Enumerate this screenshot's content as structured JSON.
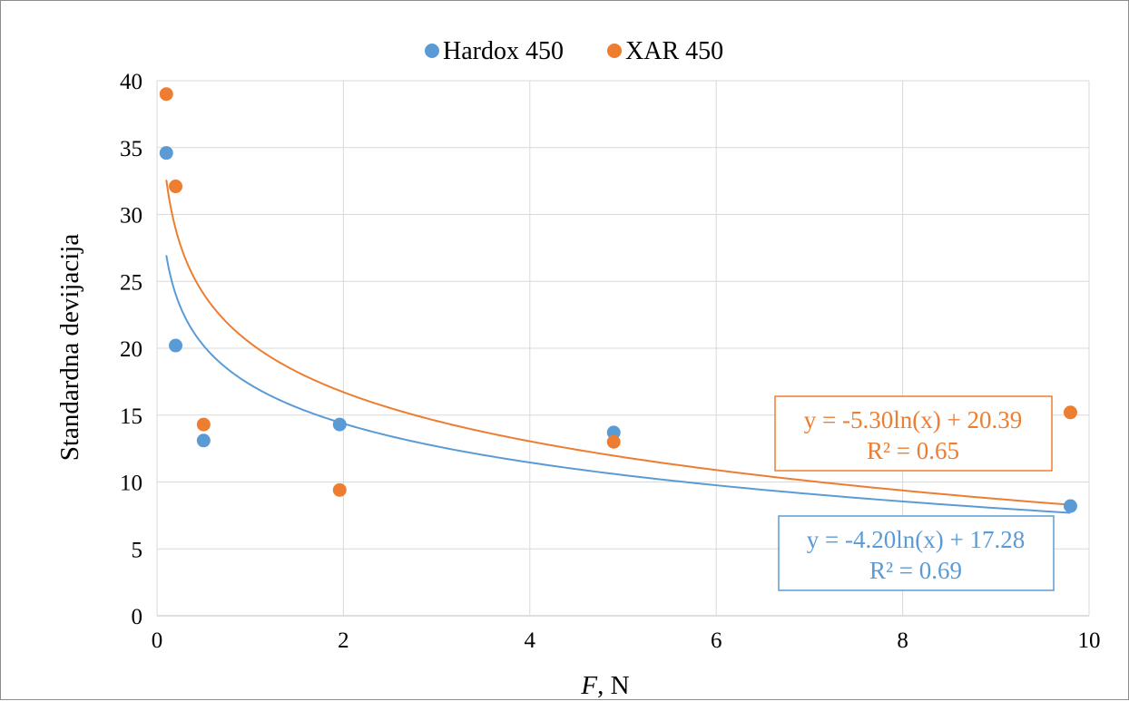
{
  "chart_data": {
    "type": "scatter",
    "xlabel_italic": "F",
    "xlabel_rest": ", N",
    "ylabel": "Standardna devijacija",
    "xlim": [
      0,
      10
    ],
    "ylim": [
      0,
      40
    ],
    "xticks": [
      0,
      2,
      4,
      6,
      8,
      10
    ],
    "yticks": [
      0,
      5,
      10,
      15,
      20,
      25,
      30,
      35,
      40
    ],
    "xtick_labels": [
      "0",
      "2",
      "4",
      "6",
      "8",
      "10"
    ],
    "ytick_labels": [
      "0",
      "5",
      "10",
      "15",
      "20",
      "25",
      "30",
      "35",
      "40"
    ],
    "grid": true,
    "legend_position": "top",
    "series": [
      {
        "name": "Hardox 450",
        "color": "#5b9bd5",
        "points": [
          [
            0.1,
            34.6
          ],
          [
            0.2,
            20.2
          ],
          [
            0.5,
            13.1
          ],
          [
            1.96,
            14.3
          ],
          [
            4.9,
            13.7
          ],
          [
            9.8,
            8.2
          ]
        ],
        "trendline": {
          "type": "log",
          "a": -4.2,
          "b": 17.28,
          "x_from": 0.1,
          "x_to": 9.8
        },
        "equation": "y = -4.20ln(x) + 17.28",
        "r2": "R² = 0.69"
      },
      {
        "name": "XAR 450",
        "color": "#ed7d31",
        "points": [
          [
            0.1,
            39.0
          ],
          [
            0.2,
            32.1
          ],
          [
            0.5,
            14.3
          ],
          [
            1.96,
            9.4
          ],
          [
            4.9,
            13.0
          ],
          [
            9.8,
            15.2
          ]
        ],
        "trendline": {
          "type": "log",
          "a": -5.3,
          "b": 20.39,
          "x_from": 0.1,
          "x_to": 9.8
        },
        "equation": "y = -5.30ln(x) + 20.39",
        "r2": "R² = 0.65"
      }
    ]
  }
}
